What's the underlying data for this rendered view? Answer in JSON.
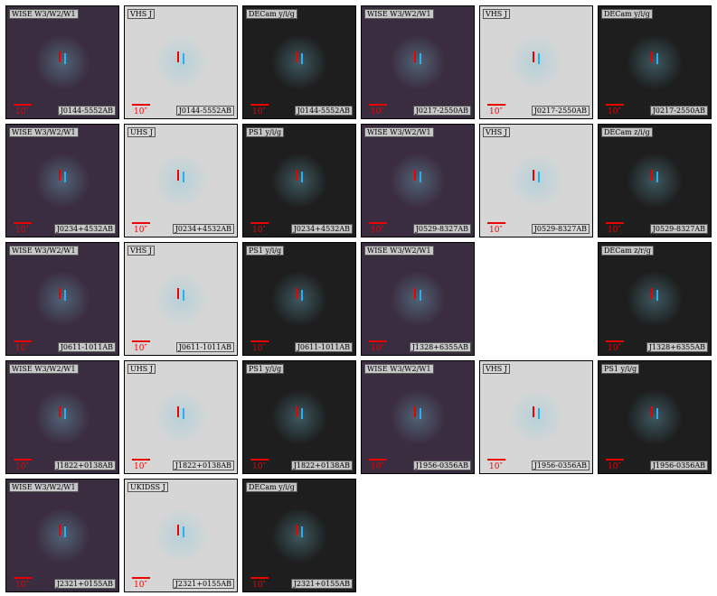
{
  "scale_label": "10″",
  "rows": [
    [
      {
        "survey": "WISE W3/W2/W1",
        "name": "J0144-5552AB",
        "background": "#3b2d40"
      },
      {
        "survey": "VHS J",
        "name": "J0144-5552AB",
        "background": "#d6d6d6"
      },
      {
        "survey": "DECam y/i/g",
        "name": "J0144-5552AB",
        "background": "#1e1e1e"
      },
      {
        "survey": "WISE W3/W2/W1",
        "name": "J0217-2550AB",
        "background": "#3b2d40"
      },
      {
        "survey": "VHS J",
        "name": "J0217-2550AB",
        "background": "#d6d6d6"
      },
      {
        "survey": "DECam y/i/g",
        "name": "J0217-2550AB",
        "background": "#1e1e1e"
      }
    ],
    [
      {
        "survey": "WISE W3/W2/W1",
        "name": "J0234+4532AB",
        "background": "#3b2d40"
      },
      {
        "survey": "UHS J",
        "name": "J0234+4532AB",
        "background": "#d6d6d6"
      },
      {
        "survey": "PS1 y/i/g",
        "name": "J0234+4532AB",
        "background": "#1e1e1e"
      },
      {
        "survey": "WISE W3/W2/W1",
        "name": "J0529-8327AB",
        "background": "#3b2d40"
      },
      {
        "survey": "VHS J",
        "name": "J0529-8327AB",
        "background": "#d6d6d6"
      },
      {
        "survey": "DECam z/i/g",
        "name": "J0529-8327AB",
        "background": "#1e1e1e"
      }
    ],
    [
      {
        "survey": "WISE W3/W2/W1",
        "name": "J0611-1011AB",
        "background": "#3b2d40"
      },
      {
        "survey": "VHS J",
        "name": "J0611-1011AB",
        "background": "#d6d6d6"
      },
      {
        "survey": "PS1 y/i/g",
        "name": "J0611-1011AB",
        "background": "#1e1e1e"
      },
      {
        "survey": "WISE W3/W2/W1",
        "name": "J1328+6355AB",
        "background": "#3b2d40"
      },
      null,
      {
        "survey": "DECam z/r/g",
        "name": "J1328+6355AB",
        "background": "#1e1e1e"
      }
    ],
    [
      {
        "survey": "WISE W3/W2/W1",
        "name": "J1822+0138AB",
        "background": "#3b2d40"
      },
      {
        "survey": "UHS J",
        "name": "J1822+0138AB",
        "background": "#d6d6d6"
      },
      {
        "survey": "PS1 y/i/g",
        "name": "J1822+0138AB",
        "background": "#1e1e1e"
      },
      {
        "survey": "WISE W3/W2/W1",
        "name": "J1956-0356AB",
        "background": "#3b2d40"
      },
      {
        "survey": "VHS J",
        "name": "J1956-0356AB",
        "background": "#d6d6d6"
      },
      {
        "survey": "PS1 y/i/g",
        "name": "J1956-0356AB",
        "background": "#1e1e1e"
      }
    ],
    [
      {
        "survey": "WISE W3/W2/W1",
        "name": "J2321+0155AB",
        "background": "#3b2d40"
      },
      {
        "survey": "UKIDSS J",
        "name": "J2321+0155AB",
        "background": "#d6d6d6"
      },
      {
        "survey": "DECam y/i/g",
        "name": "J2321+0155AB",
        "background": "#1e1e1e"
      }
    ]
  ]
}
